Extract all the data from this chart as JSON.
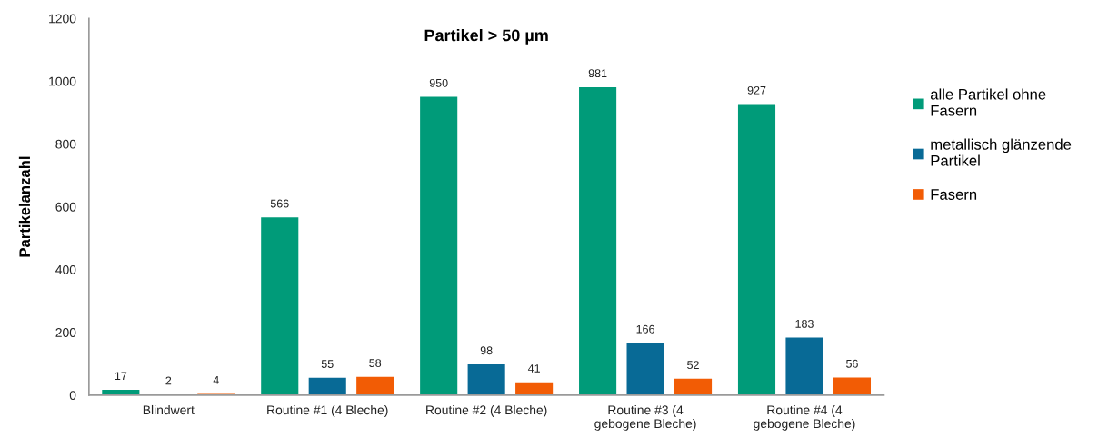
{
  "chart_data": {
    "type": "bar",
    "title": "Partikel > 50 µm",
    "ylabel": "Partikelanzahl",
    "categories": [
      "Blindwert",
      "Routine #1 (4 Bleche)",
      "Routine #2 (4 Bleche)",
      "Routine #3 (4\ngebogene Bleche)",
      "Routine #4 (4\ngebogene Bleche)"
    ],
    "series": [
      {
        "name": "alle Partikel ohne\nFasern",
        "color": "#009b79",
        "values": [
          17,
          566,
          950,
          981,
          927
        ]
      },
      {
        "name": "metallisch glänzende\nPartikel",
        "color": "#086a96",
        "values": [
          2,
          55,
          98,
          166,
          183
        ]
      },
      {
        "name": "Fasern",
        "color": "#f25c05",
        "values": [
          4,
          58,
          41,
          52,
          56
        ]
      }
    ],
    "ylim": [
      0,
      1200
    ],
    "yticks": [
      0,
      200,
      400,
      600,
      800,
      1000,
      1200
    ],
    "data_labels": true,
    "grid": false,
    "legend": "right"
  }
}
